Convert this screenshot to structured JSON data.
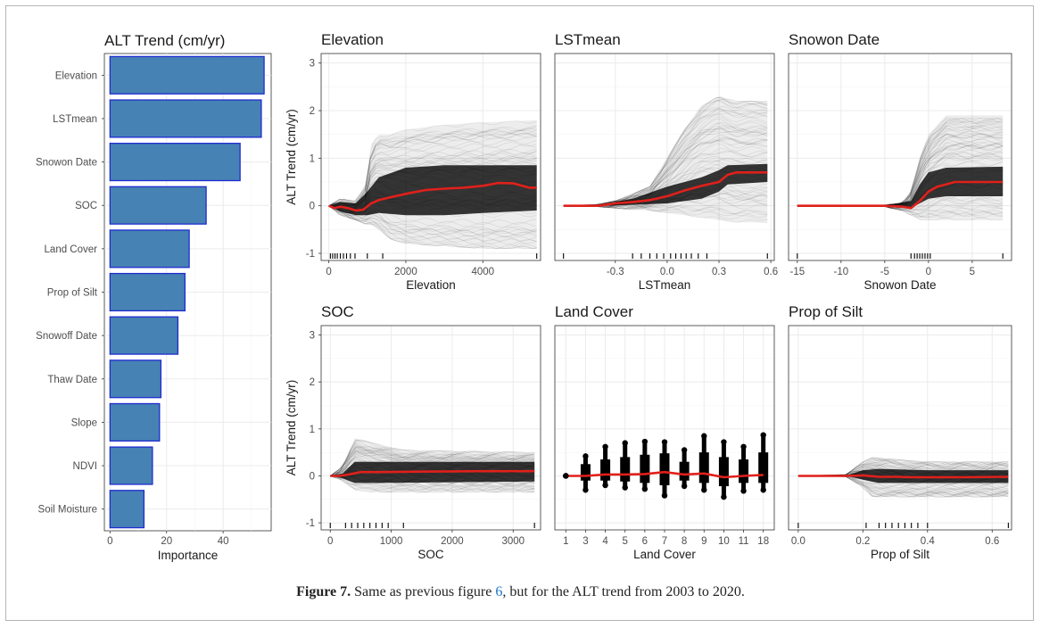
{
  "colors": {
    "bar_fill": "#4682b4",
    "bar_stroke": "#1f2bd0",
    "median_line": "#e0201b",
    "ice_lines": "#000000",
    "grid": "#ebebeb",
    "panel_border": "#333333"
  },
  "caption": {
    "label": "Figure 7.",
    "text_before": " Same as previous figure ",
    "ref": "6",
    "text_after": ", but for the ALT trend from 2003 to 2020."
  },
  "chart_data": [
    {
      "type": "bar",
      "orientation": "horizontal",
      "title": "ALT Trend (cm/yr)",
      "xlabel": "Importance",
      "ylabel": "",
      "xlim": [
        -2,
        57
      ],
      "xticks": [
        "0",
        "20",
        "40"
      ],
      "xtick_values": [
        0,
        20,
        40
      ],
      "grid": true,
      "categories": [
        "Elevation",
        "LSTmean",
        "Snowon Date",
        "SOC",
        "Land Cover",
        "Prop of Silt",
        "Snowoff Date",
        "Thaw Date",
        "Slope",
        "NDVI",
        "Soil Moisture"
      ],
      "values": [
        54.5,
        53.5,
        46,
        34,
        28,
        26.5,
        24,
        18,
        17.5,
        15,
        12
      ]
    },
    {
      "type": "line",
      "title": "Elevation",
      "xlabel": "Elevation",
      "ylabel": "ALT Trend (cm/yr)",
      "xlim": [
        -200,
        5500
      ],
      "ylim": [
        -1.15,
        3.2
      ],
      "xticks": [
        "0",
        "2000",
        "4000"
      ],
      "xtick_values": [
        0,
        2000,
        4000
      ],
      "yticks": [
        "-1",
        "0",
        "1",
        "2",
        "3"
      ],
      "ytick_values": [
        -1,
        0,
        1,
        2,
        3
      ],
      "series": [
        {
          "values": [
            [
              0,
              0
            ],
            [
              150,
              -0.05
            ],
            [
              300,
              -0.02
            ],
            [
              500,
              -0.05
            ],
            [
              700,
              -0.1
            ],
            [
              900,
              -0.08
            ],
            [
              1100,
              0.05
            ],
            [
              1300,
              0.12
            ],
            [
              1600,
              0.18
            ],
            [
              2000,
              0.25
            ],
            [
              2500,
              0.33
            ],
            [
              3000,
              0.36
            ],
            [
              3500,
              0.38
            ],
            [
              4000,
              0.42
            ],
            [
              4400,
              0.48
            ],
            [
              4800,
              0.47
            ],
            [
              5200,
              0.38
            ],
            [
              5400,
              0.38
            ]
          ]
        }
      ],
      "spread": [
        [
          0,
          0,
          0
        ],
        [
          300,
          -0.2,
          0.15
        ],
        [
          700,
          -0.3,
          0.1
        ],
        [
          1000,
          -0.4,
          0.5
        ],
        [
          1100,
          -0.4,
          1.3
        ],
        [
          1300,
          -0.5,
          1.5
        ],
        [
          1600,
          -0.7,
          1.5
        ],
        [
          2000,
          -0.8,
          1.6
        ],
        [
          3000,
          -0.85,
          1.7
        ],
        [
          4000,
          -0.9,
          1.75
        ],
        [
          5400,
          -0.9,
          1.8
        ]
      ],
      "core": [
        [
          0,
          0,
          0
        ],
        [
          300,
          -0.12,
          0.08
        ],
        [
          700,
          -0.2,
          0.05
        ],
        [
          1000,
          -0.2,
          0.3
        ],
        [
          1300,
          -0.15,
          0.6
        ],
        [
          2000,
          -0.2,
          0.8
        ],
        [
          3000,
          -0.2,
          0.85
        ],
        [
          4000,
          -0.15,
          0.85
        ],
        [
          5400,
          -0.1,
          0.85
        ]
      ],
      "rug": [
        40,
        100,
        160,
        220,
        300,
        380,
        460,
        560,
        680,
        1000,
        1400,
        5400
      ]
    },
    {
      "type": "line",
      "title": "LSTmean",
      "xlabel": "LSTmean",
      "ylabel": "",
      "xlim": [
        -0.65,
        0.62
      ],
      "ylim": [
        -1.15,
        3.2
      ],
      "xticks": [
        "-0.3",
        "0.0",
        "0.3",
        "0.6"
      ],
      "xtick_values": [
        -0.3,
        0,
        0.3,
        0.6
      ],
      "series": [
        {
          "values": [
            [
              -0.6,
              0
            ],
            [
              -0.4,
              0
            ],
            [
              -0.3,
              0.05
            ],
            [
              -0.2,
              0.08
            ],
            [
              -0.1,
              0.12
            ],
            [
              0,
              0.2
            ],
            [
              0.1,
              0.32
            ],
            [
              0.2,
              0.42
            ],
            [
              0.3,
              0.5
            ],
            [
              0.35,
              0.65
            ],
            [
              0.4,
              0.7
            ],
            [
              0.58,
              0.7
            ]
          ]
        }
      ],
      "spread": [
        [
          -0.6,
          0,
          0
        ],
        [
          -0.4,
          -0.02,
          0.03
        ],
        [
          -0.3,
          -0.05,
          0.1
        ],
        [
          -0.1,
          -0.1,
          0.4
        ],
        [
          0,
          -0.15,
          1.0
        ],
        [
          0.1,
          -0.2,
          1.6
        ],
        [
          0.2,
          -0.25,
          2.1
        ],
        [
          0.3,
          -0.3,
          2.3
        ],
        [
          0.4,
          -0.35,
          2.2
        ],
        [
          0.58,
          -0.35,
          2.2
        ]
      ],
      "core": [
        [
          -0.6,
          0,
          0
        ],
        [
          -0.4,
          0,
          0.02
        ],
        [
          -0.2,
          0.02,
          0.15
        ],
        [
          0,
          0.05,
          0.4
        ],
        [
          0.2,
          0.15,
          0.6
        ],
        [
          0.3,
          0.3,
          0.75
        ],
        [
          0.35,
          0.45,
          0.85
        ],
        [
          0.58,
          0.5,
          0.88
        ]
      ],
      "rug": [
        -0.6,
        -0.2,
        -0.15,
        -0.1,
        -0.06,
        -0.02,
        0.02,
        0.05,
        0.08,
        0.11,
        0.14,
        0.18,
        0.23,
        0.58
      ]
    },
    {
      "type": "line",
      "title": "Snowon Date",
      "xlabel": "Snowon Date",
      "ylabel": "",
      "xlim": [
        -16,
        9.5
      ],
      "ylim": [
        -1.15,
        3.2
      ],
      "xticks": [
        "-15",
        "-10",
        "-5",
        "0",
        "5"
      ],
      "xtick_values": [
        -15,
        -10,
        -5,
        0,
        5
      ],
      "series": [
        {
          "values": [
            [
              -15,
              0
            ],
            [
              -5,
              0
            ],
            [
              -3,
              -0.02
            ],
            [
              -2,
              -0.05
            ],
            [
              -1,
              0.1
            ],
            [
              0,
              0.3
            ],
            [
              1,
              0.4
            ],
            [
              2,
              0.45
            ],
            [
              3,
              0.5
            ],
            [
              5,
              0.5
            ],
            [
              8.5,
              0.5
            ]
          ]
        }
      ],
      "spread": [
        [
          -15,
          0,
          0
        ],
        [
          -5,
          -0.02,
          0.02
        ],
        [
          -3,
          -0.1,
          0.05
        ],
        [
          -2,
          -0.2,
          0.3
        ],
        [
          -1,
          -0.3,
          1.0
        ],
        [
          0,
          -0.3,
          1.5
        ],
        [
          2,
          -0.3,
          1.9
        ],
        [
          5,
          -0.3,
          1.9
        ],
        [
          8.5,
          -0.3,
          1.9
        ]
      ],
      "core": [
        [
          -15,
          0,
          0
        ],
        [
          -5,
          0,
          0.01
        ],
        [
          -2,
          -0.05,
          0.1
        ],
        [
          -1,
          0.05,
          0.45
        ],
        [
          0,
          0.15,
          0.7
        ],
        [
          2,
          0.2,
          0.8
        ],
        [
          8.5,
          0.2,
          0.82
        ]
      ],
      "rug": [
        -15,
        -2.0,
        -1.6,
        -1.3,
        -1.0,
        -0.7,
        -0.4,
        -0.1,
        0.2,
        8.5
      ]
    },
    {
      "type": "line",
      "title": "SOC",
      "xlabel": "SOC",
      "ylabel": "ALT Trend (cm/yr)",
      "xlim": [
        -150,
        3450
      ],
      "ylim": [
        -1.15,
        3.2
      ],
      "xticks": [
        "0",
        "1000",
        "2000",
        "3000"
      ],
      "xtick_values": [
        0,
        1000,
        2000,
        3000
      ],
      "yticks": [
        "-1",
        "0",
        "1",
        "2",
        "3"
      ],
      "ytick_values": [
        -1,
        0,
        1,
        2,
        3
      ],
      "series": [
        {
          "values": [
            [
              0,
              0
            ],
            [
              150,
              0
            ],
            [
              300,
              0.03
            ],
            [
              500,
              0.08
            ],
            [
              800,
              0.08
            ],
            [
              1500,
              0.09
            ],
            [
              2500,
              0.1
            ],
            [
              3350,
              0.1
            ]
          ]
        }
      ],
      "spread": [
        [
          0,
          0,
          0
        ],
        [
          200,
          -0.1,
          0.2
        ],
        [
          400,
          -0.3,
          0.8
        ],
        [
          700,
          -0.35,
          0.7
        ],
        [
          1200,
          -0.35,
          0.55
        ],
        [
          3350,
          -0.35,
          0.5
        ]
      ],
      "core": [
        [
          0,
          0,
          0
        ],
        [
          200,
          -0.05,
          0.05
        ],
        [
          400,
          -0.15,
          0.3
        ],
        [
          800,
          -0.15,
          0.3
        ],
        [
          3350,
          -0.12,
          0.3
        ]
      ],
      "rug": [
        0,
        250,
        350,
        450,
        550,
        650,
        750,
        850,
        950,
        1200,
        3350
      ]
    },
    {
      "type": "scatter",
      "title": "Land Cover",
      "xlabel": "Land Cover",
      "ylabel": "",
      "ylim": [
        -1.15,
        3.2
      ],
      "categories": [
        "1",
        "3",
        "4",
        "5",
        "6",
        "7",
        "8",
        "9",
        "10",
        "11",
        "18"
      ],
      "max": [
        0,
        0.42,
        0.62,
        0.7,
        0.73,
        0.72,
        0.55,
        0.85,
        0.72,
        0.62,
        0.87
      ],
      "min": [
        0,
        -0.3,
        -0.2,
        -0.25,
        -0.28,
        -0.42,
        -0.22,
        -0.3,
        -0.45,
        -0.32,
        -0.3
      ],
      "hi": [
        0,
        0.25,
        0.35,
        0.4,
        0.45,
        0.48,
        0.3,
        0.5,
        0.4,
        0.35,
        0.5
      ],
      "lo": [
        0,
        -0.1,
        -0.1,
        -0.12,
        -0.15,
        -0.2,
        -0.1,
        -0.15,
        -0.22,
        -0.15,
        -0.15
      ],
      "median": [
        0,
        0,
        0.03,
        0.03,
        0.04,
        0.08,
        0.03,
        0.05,
        -0.03,
        0,
        0.02
      ]
    },
    {
      "type": "line",
      "title": "Prop of Silt",
      "xlabel": "Prop of Silt",
      "ylabel": "",
      "xlim": [
        -0.03,
        0.66
      ],
      "ylim": [
        -1.15,
        3.2
      ],
      "xticks": [
        "0.0",
        "0.2",
        "0.4",
        "0.6"
      ],
      "xtick_values": [
        0,
        0.2,
        0.4,
        0.6
      ],
      "series": [
        {
          "values": [
            [
              0,
              0
            ],
            [
              0.15,
              0
            ],
            [
              0.2,
              0.01
            ],
            [
              0.25,
              -0.02
            ],
            [
              0.3,
              -0.02
            ],
            [
              0.35,
              -0.03
            ],
            [
              0.4,
              -0.03
            ],
            [
              0.5,
              -0.03
            ],
            [
              0.65,
              -0.02
            ]
          ]
        }
      ],
      "spread": [
        [
          0,
          0,
          0
        ],
        [
          0.15,
          -0.02,
          0.03
        ],
        [
          0.2,
          -0.25,
          0.3
        ],
        [
          0.23,
          -0.45,
          0.4
        ],
        [
          0.3,
          -0.45,
          0.35
        ],
        [
          0.4,
          -0.45,
          0.3
        ],
        [
          0.65,
          -0.45,
          0.3
        ]
      ],
      "core": [
        [
          0,
          0,
          0
        ],
        [
          0.15,
          0,
          0.01
        ],
        [
          0.2,
          -0.08,
          0.12
        ],
        [
          0.25,
          -0.15,
          0.15
        ],
        [
          0.4,
          -0.15,
          0.12
        ],
        [
          0.65,
          -0.15,
          0.12
        ]
      ],
      "rug": [
        0,
        0.21,
        0.25,
        0.27,
        0.29,
        0.31,
        0.33,
        0.35,
        0.37,
        0.4,
        0.65
      ]
    }
  ]
}
